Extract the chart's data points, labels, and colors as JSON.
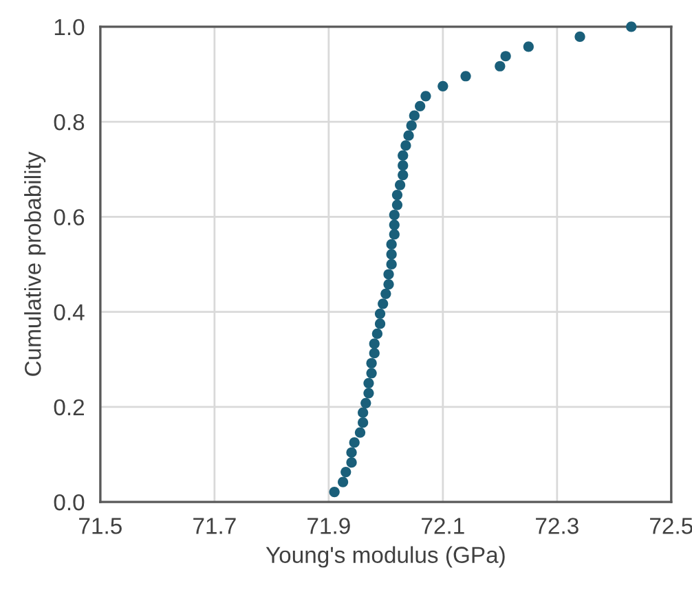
{
  "chart_data": {
    "type": "scatter",
    "xlabel": "Young's modulus (GPa)",
    "ylabel": "Cumulative probability",
    "xlim": [
      71.5,
      72.5
    ],
    "xticks": [
      71.5,
      71.7,
      71.9,
      72.1,
      72.3,
      72.5
    ],
    "ylim": [
      0,
      1
    ],
    "yticks": [
      {
        "value": 0,
        "label": "0.0"
      },
      0.2,
      0.4,
      0.6,
      0.8,
      {
        "value": 1,
        "label": "1.0"
      }
    ],
    "grid": true,
    "marker": "circle",
    "series": [
      {
        "color": "#1a5f7a",
        "x": [
          71.91,
          71.925,
          71.93,
          71.94,
          71.94,
          71.945,
          71.955,
          71.96,
          71.96,
          71.965,
          71.97,
          71.97,
          71.975,
          71.975,
          71.98,
          71.98,
          71.985,
          71.99,
          71.99,
          71.995,
          72.0,
          72.005,
          72.005,
          72.01,
          72.01,
          72.01,
          72.015,
          72.015,
          72.015,
          72.02,
          72.02,
          72.025,
          72.03,
          72.03,
          72.03,
          72.035,
          72.04,
          72.045,
          72.05,
          72.06,
          72.07,
          72.1,
          72.14,
          72.2,
          72.21,
          72.25,
          72.34,
          72.43
        ],
        "values": [
          0.021,
          0.042,
          0.063,
          0.083,
          0.104,
          0.125,
          0.146,
          0.167,
          0.188,
          0.208,
          0.229,
          0.25,
          0.271,
          0.292,
          0.313,
          0.333,
          0.354,
          0.375,
          0.396,
          0.417,
          0.438,
          0.458,
          0.479,
          0.5,
          0.521,
          0.542,
          0.563,
          0.583,
          0.604,
          0.625,
          0.646,
          0.667,
          0.688,
          0.708,
          0.729,
          0.75,
          0.771,
          0.792,
          0.813,
          0.833,
          0.854,
          0.875,
          0.896,
          0.917,
          0.938,
          0.958,
          0.979,
          1.0
        ]
      }
    ]
  }
}
